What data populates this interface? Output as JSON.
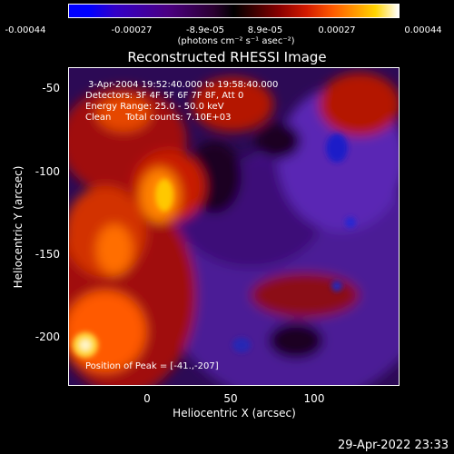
{
  "colorbar": {
    "ticks": [
      "-0.00044",
      "-0.00027",
      "-8.9e-05",
      "8.9e-05",
      "0.00027",
      "0.00044"
    ],
    "unit": "(photons cm⁻² s⁻¹ asec⁻²)"
  },
  "title": "Reconstructed RHESSI Image",
  "annotations": {
    "time_range": "3-Apr-2004 19:52:40.000 to 19:58:40.000",
    "detectors": "Detectors: 3F 4F 5F 6F 7F 8F, Att 0",
    "energy": "Energy Range: 25.0 - 50.0 keV",
    "method": "Clean     Total counts: 7.10E+03",
    "peak": "Position of Peak = [-41.,-207]"
  },
  "axes": {
    "xlabel": "Heliocentric X (arcsec)",
    "ylabel": "Heliocentric Y (arcsec)",
    "xticks": [
      "0",
      "50",
      "100"
    ],
    "yticks": [
      "-50",
      "-100",
      "-150",
      "-200"
    ]
  },
  "timestamp": "29-Apr-2022 23:33",
  "colors": {
    "background": "#000000",
    "dark_purple": "#3c0a78",
    "purple": "#5a1eb4",
    "red": "#c8140a",
    "orange": "#ff6400",
    "yellow": "#ffdc28"
  }
}
